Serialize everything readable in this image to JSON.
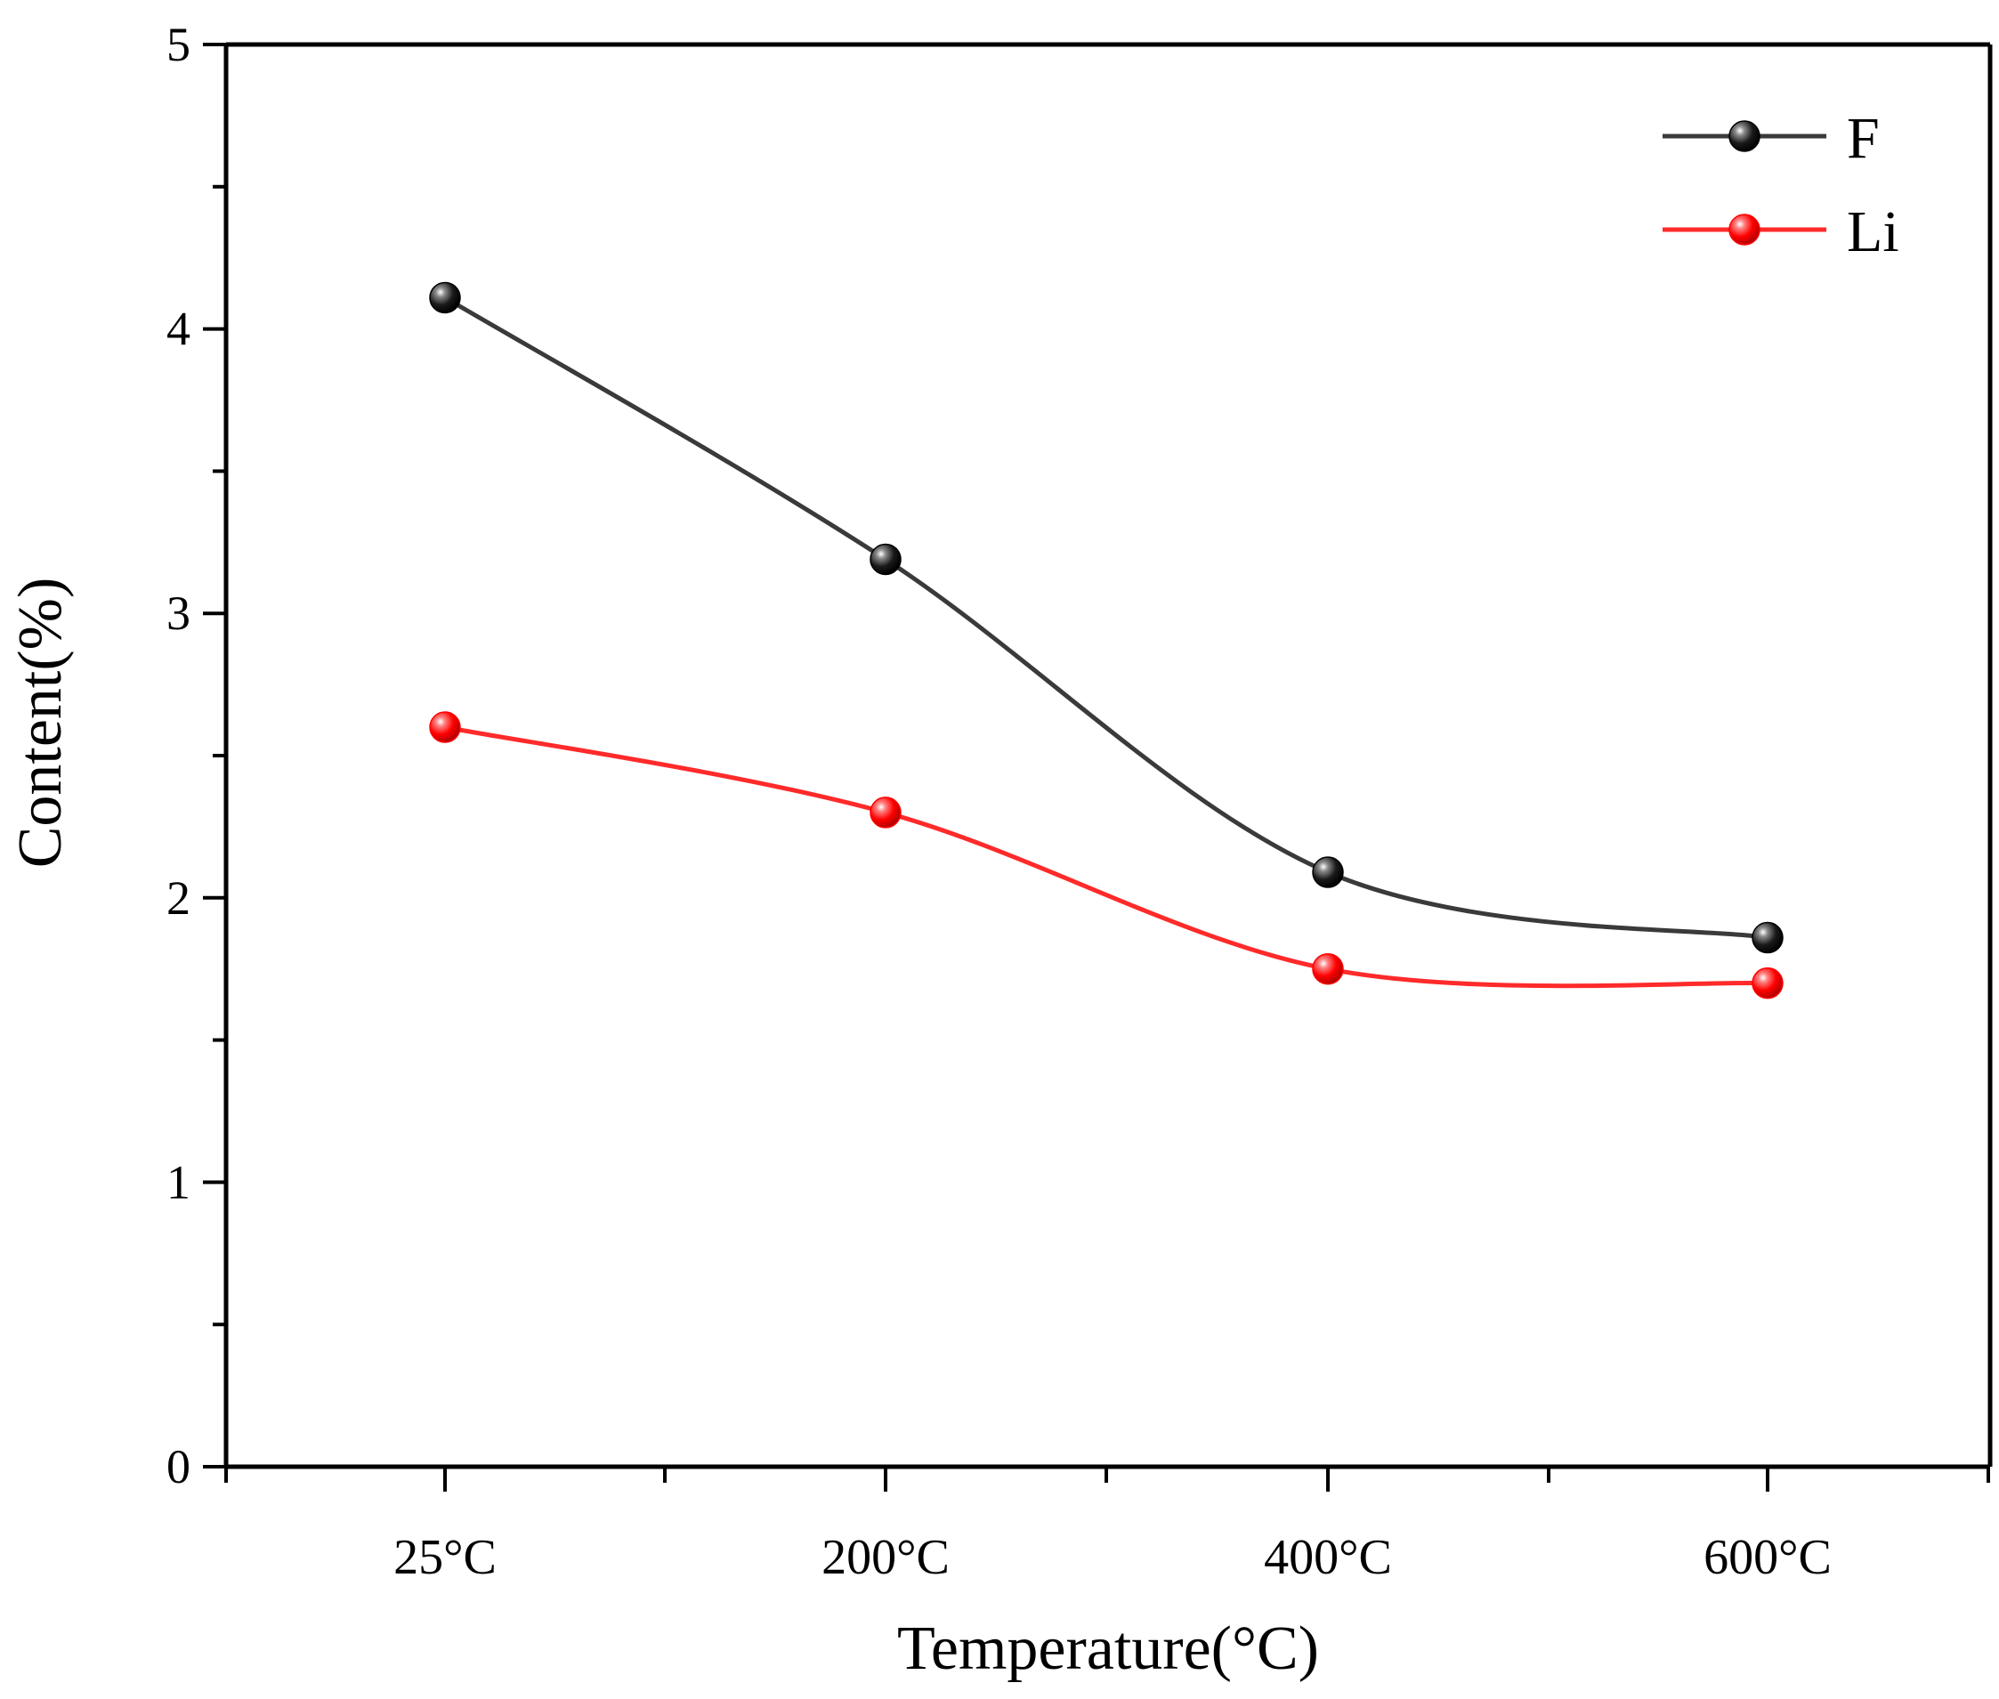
{
  "chart_data": {
    "type": "line",
    "title": "",
    "xlabel": "Temperature(°C)",
    "ylabel": "Content(%)",
    "categories": [
      "25°C",
      "200°C",
      "400°C",
      "600°C"
    ],
    "ylim": [
      0,
      5
    ],
    "yticks": [
      "0",
      "1",
      "2",
      "3",
      "4",
      "5"
    ],
    "grid": false,
    "legend_position": "top-right",
    "series": [
      {
        "name": "F",
        "color": "#000000",
        "line_color": "#3a3a3a",
        "values": [
          4.11,
          3.19,
          2.09,
          1.86
        ]
      },
      {
        "name": "Li",
        "color": "#ff0000",
        "line_color": "#ff2a2a",
        "values": [
          2.6,
          2.3,
          1.75,
          1.7
        ]
      }
    ]
  }
}
